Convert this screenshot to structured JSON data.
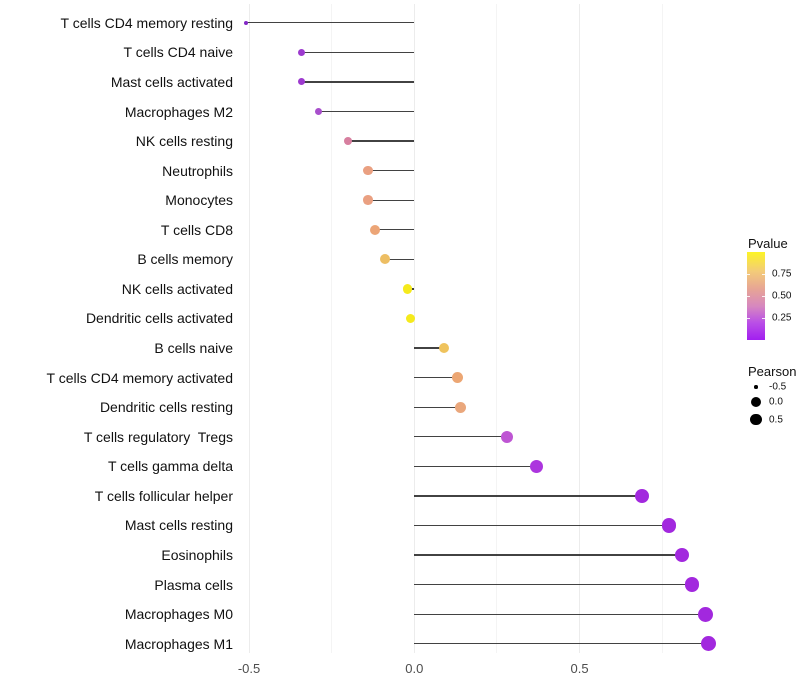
{
  "chart_data": {
    "type": "lollipop",
    "title": "",
    "xlabel": "",
    "ylabel": "",
    "description": "Pearson correlation per immune cell type; dot color = Pvalue, dot size = Pearson",
    "x_axis": {
      "ticks": [
        {
          "label": "-0.5",
          "value": -0.5
        },
        {
          "label": "0.0",
          "value": 0.0
        },
        {
          "label": "0.5",
          "value": 0.5
        }
      ],
      "gridline_values": [
        -0.5,
        -0.25,
        0.0,
        0.25,
        0.5,
        0.75
      ],
      "major_gridline_values": [
        -0.5,
        0.0,
        0.5
      ],
      "range": [
        -0.54,
        0.97
      ],
      "grid": "vertical-only"
    },
    "rows": [
      {
        "label": "T cells CD4 memory resting",
        "pearson": -0.51,
        "size": 4,
        "color": "#8328C6"
      },
      {
        "label": "T cells CD4 naive",
        "pearson": -0.34,
        "size": 7,
        "color": "#9D3ACF"
      },
      {
        "label": "Mast cells activated",
        "pearson": -0.34,
        "size": 7,
        "color": "#9D3ACF"
      },
      {
        "label": "Macrophages M2",
        "pearson": -0.29,
        "size": 7.5,
        "color": "#A84FCC"
      },
      {
        "label": "NK cells resting",
        "pearson": -0.2,
        "size": 8.5,
        "color": "#D77F9F"
      },
      {
        "label": "Neutrophils",
        "pearson": -0.14,
        "size": 9.5,
        "color": "#EAA081"
      },
      {
        "label": "Monocytes",
        "pearson": -0.14,
        "size": 9.5,
        "color": "#EAA081"
      },
      {
        "label": "T cells CD8",
        "pearson": -0.12,
        "size": 10,
        "color": "#ECA577"
      },
      {
        "label": "B cells memory",
        "pearson": -0.09,
        "size": 10,
        "color": "#EDBE63"
      },
      {
        "label": "NK cells activated",
        "pearson": -0.02,
        "size": 9.5,
        "color": "#F5EA1C"
      },
      {
        "label": "Dendritic cells activated",
        "pearson": -0.01,
        "size": 9,
        "color": "#F5EA1C"
      },
      {
        "label": "B cells naive",
        "pearson": 0.09,
        "size": 10.5,
        "color": "#EFC35D"
      },
      {
        "label": "T cells CD4 memory activated",
        "pearson": 0.13,
        "size": 11,
        "color": "#ECA673"
      },
      {
        "label": "Dendritic cells resting",
        "pearson": 0.14,
        "size": 11,
        "color": "#EAA77C"
      },
      {
        "label": "T cells regulatory  Tregs",
        "pearson": 0.28,
        "size": 12,
        "color": "#BE55D3"
      },
      {
        "label": "T cells gamma delta",
        "pearson": 0.37,
        "size": 13,
        "color": "#AC35DE"
      },
      {
        "label": "T cells follicular helper",
        "pearson": 0.69,
        "size": 14,
        "color": "#A228DE"
      },
      {
        "label": "Mast cells resting",
        "pearson": 0.77,
        "size": 14.5,
        "color": "#A228DE"
      },
      {
        "label": "Eosinophils",
        "pearson": 0.81,
        "size": 14.5,
        "color": "#A228DE"
      },
      {
        "label": "Plasma cells",
        "pearson": 0.84,
        "size": 14.5,
        "color": "#A228DE"
      },
      {
        "label": "Macrophages M0",
        "pearson": 0.88,
        "size": 15,
        "color": "#A228DE"
      },
      {
        "label": "Macrophages M1",
        "pearson": 0.89,
        "size": 15,
        "color": "#A228DE"
      }
    ],
    "legends": {
      "pvalue": {
        "title": "Pvalue",
        "ticks": [
          {
            "label": "0.75",
            "value": 0.75
          },
          {
            "label": "0.50",
            "value": 0.5
          },
          {
            "label": "0.25",
            "value": 0.25
          }
        ],
        "gradient_stops": [
          {
            "color": "#FCF426",
            "pos": "0%"
          },
          {
            "color": "#F3CB79",
            "pos": "22%"
          },
          {
            "color": "#E7A595",
            "pos": "42%"
          },
          {
            "color": "#D687C0",
            "pos": "62%"
          },
          {
            "color": "#BA50E6",
            "pos": "80%"
          },
          {
            "color": "#A21FF0",
            "pos": "100%"
          }
        ]
      },
      "pearson": {
        "title": "Pearson",
        "items": [
          {
            "label": "-0.5",
            "size": 3.5
          },
          {
            "label": "0.0",
            "size": 10
          },
          {
            "label": "0.5",
            "size": 11.5
          }
        ]
      }
    }
  }
}
